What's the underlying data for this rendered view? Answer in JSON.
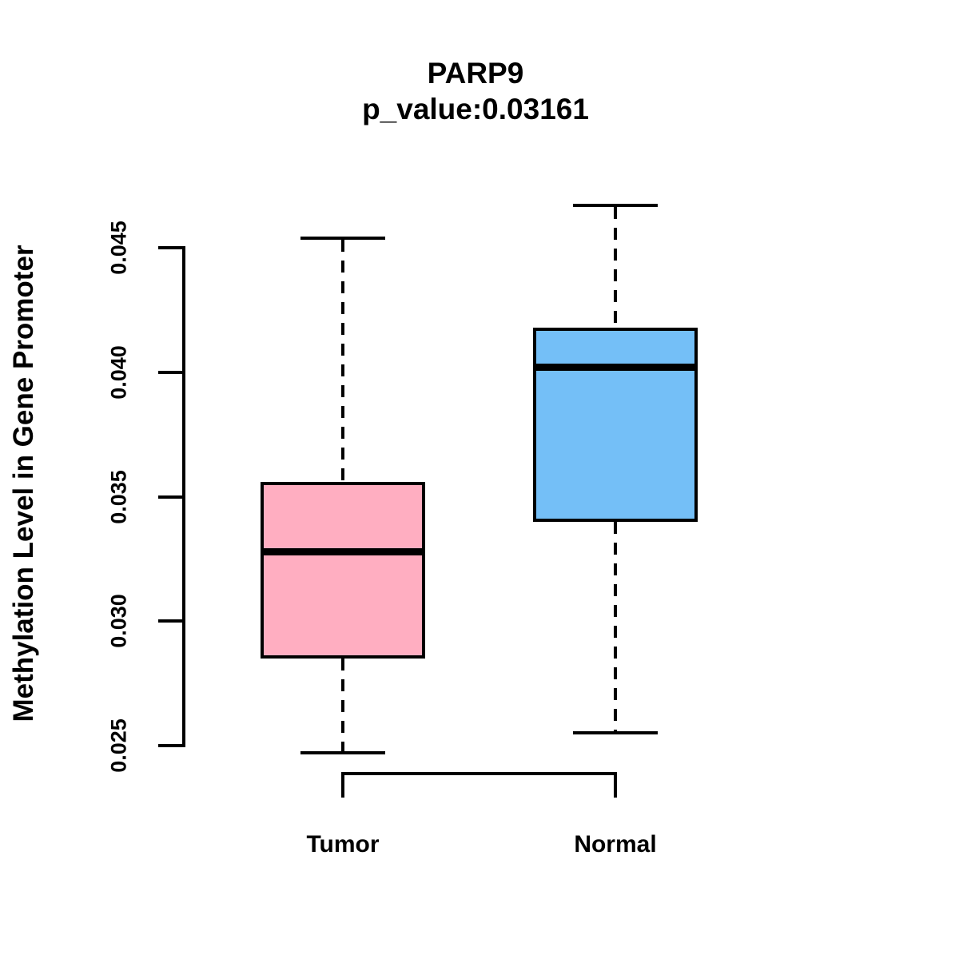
{
  "figure": {
    "title": "PARP9",
    "subtitle": "p_value:0.03161",
    "ylabel": "Methylation Level in Gene Promoter"
  },
  "chart_data": {
    "type": "boxplot",
    "title": "PARP9",
    "subtitle": "p_value:0.03161",
    "ylabel": "Methylation Level in Gene Promoter",
    "xlabel": "",
    "categories": [
      "Tumor",
      "Normal"
    ],
    "series": [
      {
        "name": "Tumor",
        "fill": "#FFAEC1",
        "whisker_low": 0.0247,
        "q1": 0.0285,
        "median": 0.0328,
        "q3": 0.0356,
        "whisker_high": 0.0454
      },
      {
        "name": "Normal",
        "fill": "#74BFF7",
        "whisker_low": 0.0255,
        "q1": 0.034,
        "median": 0.0402,
        "q3": 0.0418,
        "whisker_high": 0.0467
      }
    ],
    "yticks": [
      0.025,
      0.03,
      0.035,
      0.04,
      0.045
    ],
    "ytick_labels": [
      "0.025",
      "0.030",
      "0.035",
      "0.040",
      "0.045"
    ],
    "ylim": [
      0.025,
      0.045
    ],
    "grid": false,
    "legend": "none",
    "colors": {
      "stroke": "#000000",
      "tumor_fill": "#FFAEC1",
      "normal_fill": "#74BFF7",
      "background": "#ffffff"
    }
  }
}
